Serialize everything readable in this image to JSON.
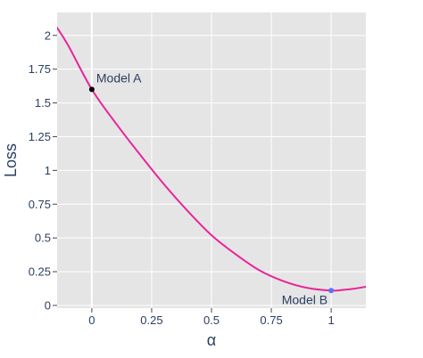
{
  "chart_data": {
    "type": "line",
    "xlabel": "α",
    "ylabel": "Loss",
    "xlim": [
      -0.145,
      1.145
    ],
    "ylim": [
      -0.02,
      2.17
    ],
    "x_ticks": [
      0,
      0.25,
      0.5,
      0.75,
      1
    ],
    "x_tick_labels": [
      "0",
      "0.25",
      "0.5",
      "0.75",
      "1"
    ],
    "y_ticks": [
      0,
      0.25,
      0.5,
      0.75,
      1,
      1.25,
      1.5,
      1.75,
      2
    ],
    "y_tick_labels": [
      "0",
      "0.25",
      "0.5",
      "0.75",
      "1",
      "1.25",
      "1.5",
      "1.75",
      "2"
    ],
    "grid": true,
    "series": [
      {
        "color": "#e8259a",
        "x": [
          -0.15,
          -0.1,
          0,
          0.1,
          0.2,
          0.3,
          0.4,
          0.5,
          0.6,
          0.7,
          0.8,
          0.9,
          1.0,
          1.05,
          1.1,
          1.15
        ],
        "y": [
          2.07,
          1.93,
          1.6,
          1.35,
          1.12,
          0.9,
          0.7,
          0.52,
          0.38,
          0.26,
          0.18,
          0.13,
          0.11,
          0.115,
          0.125,
          0.14
        ]
      }
    ],
    "points": [
      {
        "label": "Model A",
        "x": 0,
        "y": 1.6,
        "color": "#000000"
      },
      {
        "label": "Model B",
        "x": 1,
        "y": 0.11,
        "color": "#636efa"
      }
    ],
    "background": "#e5e5e5",
    "gridcolor": "#ffffff"
  }
}
